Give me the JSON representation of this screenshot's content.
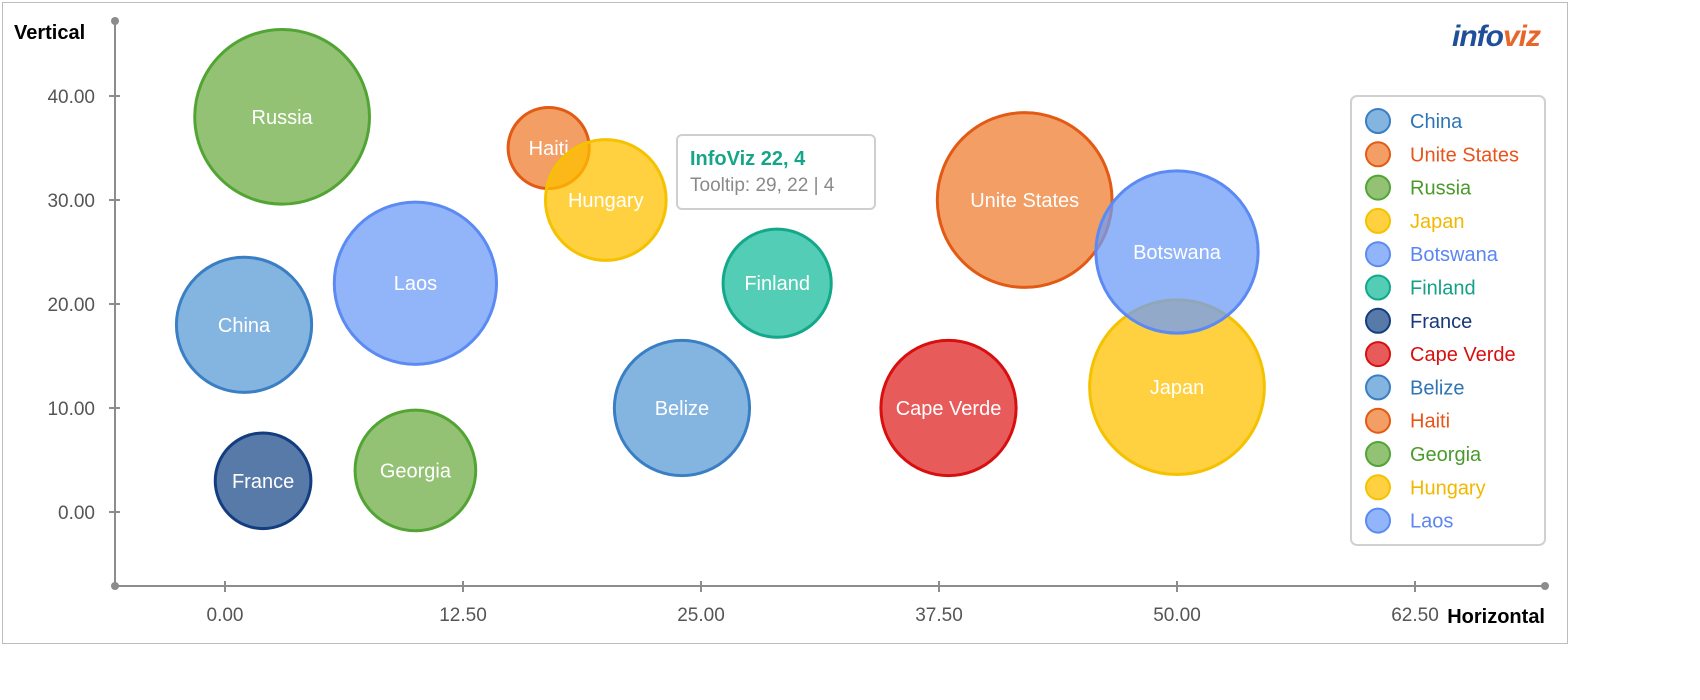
{
  "logo": {
    "part1": "info",
    "part2": "viz"
  },
  "tooltip": {
    "title": "InfoViz 22, 4",
    "body": "Tooltip: 29, 22 | 4"
  },
  "chart_data": {
    "type": "bubble",
    "xlabel": "Horizontal",
    "ylabel": "Vertical",
    "xlim": [
      -6,
      69
    ],
    "ylim": [
      -7,
      47
    ],
    "xticks": [
      0,
      12.5,
      25,
      37.5,
      50,
      62.5
    ],
    "xtick_labels": [
      "0.00",
      "12.50",
      "25.00",
      "37.50",
      "50.00",
      "62.50"
    ],
    "yticks": [
      0,
      10,
      20,
      30,
      40
    ],
    "ytick_labels": [
      "0.00",
      "10.00",
      "20.00",
      "30.00",
      "40.00"
    ],
    "grid": false,
    "legend_position": "right",
    "series": [
      {
        "name": "China",
        "x": 1,
        "y": 18,
        "size": 6.5,
        "color": "#5b9bd5"
      },
      {
        "name": "Unite States",
        "x": 42,
        "y": 30,
        "size": 8.4,
        "color": "#ed7d31",
        "bubble_label": "Unite States"
      },
      {
        "name": "Russia",
        "x": 3,
        "y": 38,
        "size": 8.4,
        "color": "#70ad47"
      },
      {
        "name": "Japan",
        "x": 50,
        "y": 12,
        "size": 8.4,
        "color": "#ffc000"
      },
      {
        "name": "Botswana",
        "x": 50,
        "y": 25,
        "size": 7.8,
        "color": "#6e9cf7"
      },
      {
        "name": "Finland",
        "x": 29,
        "y": 22,
        "size": 5.2,
        "color": "#1abc9c"
      },
      {
        "name": "France",
        "x": 2,
        "y": 3,
        "size": 4.6,
        "color": "#1f4e8c"
      },
      {
        "name": "Cape Verde",
        "x": 38,
        "y": 10,
        "size": 6.5,
        "color": "#e02424"
      },
      {
        "name": "Belize",
        "x": 24,
        "y": 10,
        "size": 6.5,
        "color": "#5b9bd5"
      },
      {
        "name": "Haiti",
        "x": 17,
        "y": 35,
        "size": 3.9,
        "color": "#ed7d31"
      },
      {
        "name": "Georgia",
        "x": 10,
        "y": 4,
        "size": 5.8,
        "color": "#70ad47"
      },
      {
        "name": "Hungary",
        "x": 20,
        "y": 30,
        "size": 5.8,
        "color": "#ffc000"
      },
      {
        "name": "Laos",
        "x": 10,
        "y": 22,
        "size": 7.8,
        "color": "#6e9cf7"
      }
    ],
    "legend_text_colors": {
      "China": "#2e75b6",
      "Unite States": "#e8541a",
      "Russia": "#4a9a2a",
      "Japan": "#f2b800",
      "Botswana": "#5b85f0",
      "Finland": "#16a085",
      "France": "#17387a",
      "Cape Verde": "#d80f0f",
      "Belize": "#2e75b6",
      "Haiti": "#e8541a",
      "Georgia": "#4a9a2a",
      "Hungary": "#f2b800",
      "Laos": "#5b85f0"
    },
    "bubble_stroke_colors": {
      "China": "#3a7fc4",
      "Unite States": "#e35a14",
      "Russia": "#52a534",
      "Japan": "#f5c200",
      "Botswana": "#5b8af2",
      "Finland": "#14a88a",
      "France": "#143d80",
      "Cape Verde": "#d80f0f",
      "Belize": "#3a7fc4",
      "Haiti": "#e35a14",
      "Georgia": "#52a534",
      "Hungary": "#f5c200",
      "Laos": "#5b8af2"
    }
  }
}
